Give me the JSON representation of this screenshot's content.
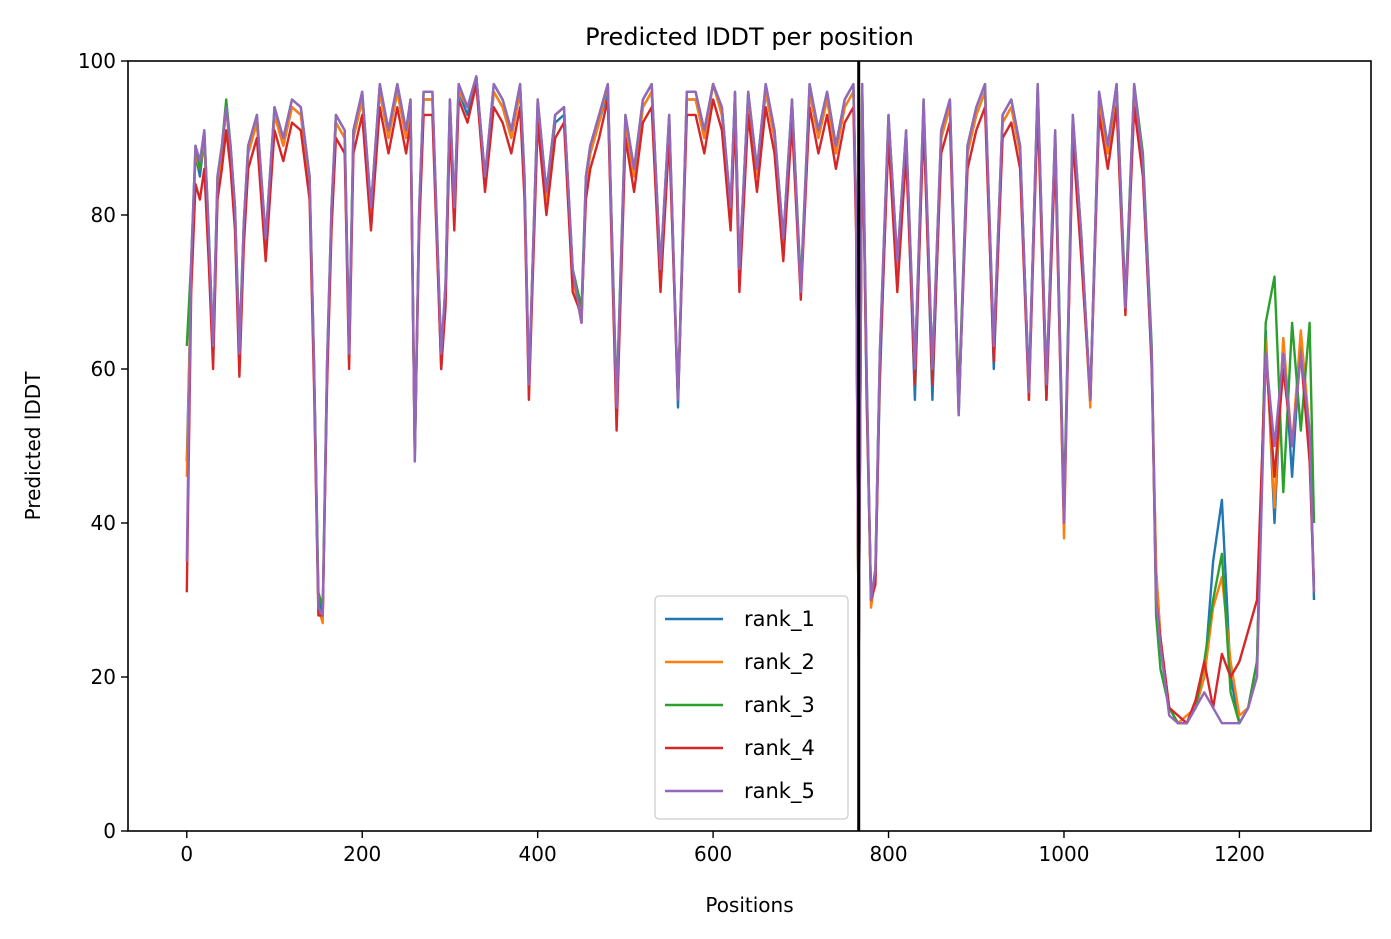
{
  "chart_data": {
    "type": "line",
    "title": "Predicted lDDT per position",
    "xlabel": "Positions",
    "ylabel": "Predicted lDDT",
    "xlim": [
      -67,
      1350
    ],
    "ylim": [
      0,
      100
    ],
    "xticks": [
      0,
      200,
      400,
      600,
      800,
      1000,
      1200
    ],
    "yticks": [
      0,
      20,
      40,
      60,
      80,
      100
    ],
    "grid": false,
    "legend_position": "lower-center",
    "vline": {
      "x": 766,
      "color": "#000000"
    },
    "x": [
      0,
      5,
      10,
      15,
      20,
      25,
      30,
      35,
      40,
      45,
      50,
      55,
      60,
      65,
      70,
      80,
      90,
      100,
      110,
      120,
      130,
      140,
      145,
      150,
      155,
      160,
      165,
      170,
      180,
      185,
      190,
      200,
      210,
      220,
      230,
      240,
      250,
      255,
      260,
      265,
      270,
      280,
      290,
      295,
      300,
      305,
      310,
      320,
      330,
      340,
      350,
      360,
      370,
      380,
      385,
      390,
      400,
      410,
      420,
      430,
      440,
      450,
      455,
      460,
      470,
      480,
      490,
      500,
      510,
      520,
      530,
      540,
      550,
      560,
      570,
      580,
      590,
      600,
      610,
      620,
      625,
      630,
      640,
      650,
      660,
      670,
      680,
      690,
      700,
      710,
      720,
      730,
      740,
      750,
      760,
      763,
      766,
      770,
      775,
      780,
      785,
      790,
      800,
      810,
      820,
      830,
      840,
      850,
      860,
      870,
      880,
      890,
      900,
      910,
      920,
      930,
      940,
      950,
      960,
      970,
      980,
      990,
      1000,
      1010,
      1020,
      1030,
      1040,
      1050,
      1060,
      1070,
      1080,
      1090,
      1100,
      1105,
      1110,
      1120,
      1130,
      1140,
      1150,
      1160,
      1170,
      1180,
      1190,
      1200,
      1210,
      1220,
      1230,
      1240,
      1250,
      1260,
      1270,
      1280,
      1285
    ],
    "series": [
      {
        "name": "rank_1",
        "color": "#1f77b4",
        "values": [
          48,
          72,
          88,
          85,
          90,
          76,
          62,
          84,
          88,
          94,
          88,
          80,
          62,
          78,
          88,
          92,
          76,
          93,
          89,
          94,
          93,
          84,
          60,
          30,
          28,
          60,
          80,
          92,
          90,
          62,
          90,
          95,
          80,
          96,
          90,
          96,
          90,
          94,
          50,
          80,
          95,
          95,
          60,
          70,
          94,
          80,
          96,
          93,
          98,
          84,
          96,
          94,
          90,
          96,
          84,
          57,
          94,
          82,
          92,
          93,
          72,
          66,
          84,
          88,
          92,
          96,
          54,
          92,
          85,
          94,
          96,
          72,
          92,
          55,
          95,
          95,
          90,
          97,
          93,
          80,
          95,
          72,
          95,
          85,
          96,
          90,
          76,
          94,
          70,
          96,
          90,
          95,
          88,
          94,
          96,
          80,
          22,
          96,
          56,
          31,
          33,
          58,
          92,
          72,
          90,
          56,
          94,
          56,
          90,
          94,
          54,
          88,
          93,
          96,
          60,
          92,
          94,
          88,
          58,
          96,
          56,
          90,
          40,
          92,
          76,
          56,
          95,
          88,
          96,
          68,
          96,
          86,
          60,
          34,
          25,
          16,
          14,
          14,
          16,
          20,
          35,
          43,
          20,
          14,
          16,
          22,
          65,
          40,
          64,
          46,
          64,
          50,
          30
        ]
      },
      {
        "name": "rank_2",
        "color": "#ff7f0e",
        "values": [
          46,
          72,
          88,
          86,
          90,
          77,
          61,
          84,
          88,
          94,
          88,
          80,
          61,
          78,
          88,
          92,
          76,
          93,
          89,
          94,
          93,
          84,
          60,
          29,
          27,
          60,
          80,
          92,
          90,
          61,
          90,
          95,
          80,
          96,
          90,
          96,
          90,
          94,
          50,
          80,
          95,
          95,
          61,
          70,
          94,
          80,
          96,
          94,
          98,
          85,
          96,
          94,
          90,
          96,
          84,
          58,
          94,
          82,
          93,
          94,
          72,
          66,
          84,
          88,
          92,
          97,
          55,
          92,
          85,
          94,
          96,
          73,
          92,
          56,
          95,
          95,
          90,
          97,
          93,
          80,
          95,
          73,
          95,
          85,
          96,
          90,
          76,
          94,
          70,
          96,
          90,
          95,
          88,
          94,
          96,
          80,
          22,
          96,
          58,
          29,
          33,
          60,
          92,
          73,
          90,
          58,
          94,
          58,
          90,
          94,
          55,
          88,
          93,
          96,
          62,
          92,
          94,
          88,
          56,
          96,
          57,
          90,
          38,
          92,
          76,
          55,
          95,
          88,
          96,
          68,
          96,
          86,
          62,
          34,
          25,
          16,
          14,
          15,
          16,
          20,
          29,
          33,
          22,
          15,
          16,
          22,
          64,
          42,
          64,
          50,
          65,
          52,
          31
        ]
      },
      {
        "name": "rank_3",
        "color": "#2ca02c",
        "values": [
          63,
          74,
          89,
          86,
          91,
          78,
          63,
          85,
          89,
          95,
          89,
          81,
          63,
          79,
          89,
          93,
          77,
          94,
          90,
          95,
          94,
          85,
          61,
          31,
          29,
          61,
          81,
          93,
          91,
          63,
          91,
          96,
          81,
          97,
          91,
          97,
          91,
          95,
          48,
          81,
          96,
          96,
          62,
          71,
          95,
          81,
          97,
          94,
          98,
          85,
          97,
          95,
          91,
          97,
          85,
          58,
          95,
          83,
          93,
          94,
          73,
          68,
          85,
          89,
          93,
          97,
          56,
          93,
          86,
          95,
          97,
          73,
          93,
          56,
          96,
          96,
          91,
          97,
          94,
          81,
          96,
          73,
          96,
          86,
          97,
          91,
          77,
          95,
          71,
          97,
          91,
          96,
          89,
          95,
          97,
          81,
          22,
          97,
          60,
          30,
          34,
          62,
          93,
          74,
          91,
          60,
          95,
          60,
          91,
          95,
          56,
          89,
          94,
          97,
          63,
          93,
          95,
          89,
          57,
          97,
          58,
          91,
          42,
          93,
          77,
          56,
          96,
          89,
          97,
          69,
          97,
          88,
          63,
          28,
          21,
          16,
          14,
          14,
          16,
          22,
          30,
          36,
          18,
          14,
          16,
          22,
          66,
          72,
          44,
          66,
          52,
          66,
          40
        ]
      },
      {
        "name": "rank_4",
        "color": "#d62728",
        "values": [
          31,
          70,
          84,
          82,
          86,
          74,
          60,
          82,
          86,
          91,
          86,
          78,
          59,
          76,
          86,
          90,
          74,
          91,
          87,
          92,
          91,
          82,
          58,
          28,
          28,
          58,
          78,
          90,
          88,
          60,
          88,
          93,
          78,
          94,
          88,
          94,
          88,
          92,
          49,
          78,
          93,
          93,
          60,
          68,
          92,
          78,
          95,
          92,
          97,
          83,
          94,
          92,
          88,
          94,
          82,
          56,
          92,
          80,
          90,
          92,
          70,
          67,
          82,
          86,
          90,
          95,
          52,
          90,
          83,
          92,
          94,
          70,
          90,
          56,
          93,
          93,
          88,
          95,
          91,
          78,
          93,
          70,
          93,
          83,
          94,
          88,
          74,
          92,
          69,
          94,
          88,
          93,
          86,
          92,
          94,
          78,
          22,
          94,
          58,
          30,
          32,
          60,
          90,
          70,
          88,
          58,
          92,
          58,
          88,
          92,
          55,
          86,
          91,
          94,
          61,
          90,
          92,
          86,
          56,
          94,
          56,
          88,
          40,
          90,
          74,
          56,
          93,
          86,
          94,
          67,
          94,
          85,
          61,
          30,
          25,
          16,
          15,
          14,
          17,
          22,
          16,
          23,
          20,
          22,
          26,
          30,
          62,
          46,
          60,
          50,
          62,
          48,
          32
        ]
      },
      {
        "name": "rank_5",
        "color": "#9467bd",
        "values": [
          35,
          74,
          89,
          87,
          91,
          78,
          63,
          85,
          89,
          94,
          89,
          81,
          62,
          79,
          89,
          93,
          77,
          94,
          90,
          95,
          94,
          85,
          61,
          29,
          28,
          61,
          81,
          93,
          91,
          62,
          91,
          96,
          81,
          97,
          91,
          97,
          91,
          95,
          48,
          81,
          96,
          96,
          62,
          71,
          95,
          81,
          97,
          94,
          98,
          85,
          97,
          95,
          91,
          97,
          85,
          58,
          95,
          83,
          93,
          94,
          73,
          66,
          85,
          89,
          93,
          97,
          55,
          93,
          86,
          95,
          97,
          73,
          93,
          56,
          96,
          96,
          91,
          97,
          94,
          81,
          96,
          73,
          96,
          86,
          97,
          91,
          77,
          95,
          70,
          97,
          91,
          96,
          89,
          95,
          97,
          81,
          22,
          97,
          60,
          30,
          34,
          62,
          93,
          74,
          91,
          60,
          95,
          60,
          91,
          95,
          54,
          89,
          94,
          97,
          63,
          93,
          95,
          89,
          57,
          97,
          58,
          91,
          40,
          93,
          77,
          56,
          96,
          89,
          97,
          68,
          97,
          87,
          62,
          30,
          24,
          15,
          14,
          14,
          16,
          18,
          16,
          14,
          14,
          14,
          16,
          20,
          62,
          50,
          62,
          50,
          62,
          52,
          31
        ]
      }
    ]
  }
}
